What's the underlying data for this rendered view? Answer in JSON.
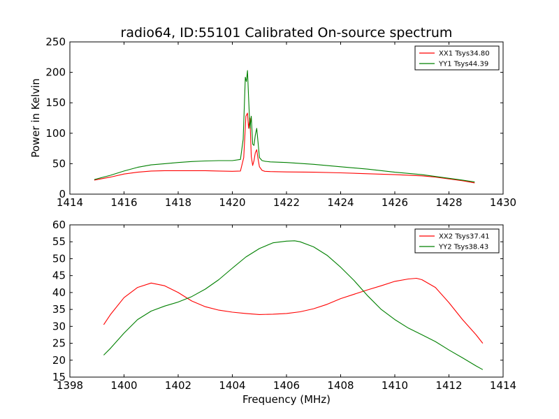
{
  "figure": {
    "title": "radio64, ID:55101 Calibrated On-source spectrum",
    "ylabel_top": "Power in Kelvin",
    "xlabel_bottom": "Frequency (MHz)"
  },
  "colors": {
    "xx": "#ff0000",
    "yy": "#008000",
    "axes": "#000000",
    "background": "#ffffff"
  },
  "chart_data": [
    {
      "type": "line",
      "title": "radio64, ID:55101 Calibrated On-source spectrum",
      "xlabel": "",
      "ylabel": "Power in Kelvin",
      "xlim": [
        1414,
        1430
      ],
      "ylim": [
        0,
        250
      ],
      "xticks": [
        1414,
        1416,
        1418,
        1420,
        1422,
        1424,
        1426,
        1428,
        1430
      ],
      "yticks": [
        0,
        50,
        100,
        150,
        200,
        250
      ],
      "grid": false,
      "legend": "top-right",
      "series": [
        {
          "name": "XX1 Tsys34.80",
          "color": "#ff0000",
          "x": [
            1414.9,
            1415.5,
            1416.0,
            1416.5,
            1417.0,
            1417.5,
            1418.0,
            1418.5,
            1419.0,
            1419.5,
            1420.0,
            1420.3,
            1420.42,
            1420.5,
            1420.56,
            1420.6,
            1420.65,
            1420.7,
            1420.75,
            1420.8,
            1420.85,
            1420.9,
            1420.95,
            1421.0,
            1421.1,
            1421.2,
            1421.4,
            1422.0,
            1423.0,
            1424.0,
            1425.0,
            1426.0,
            1427.0,
            1427.5,
            1428.0,
            1428.5,
            1428.95
          ],
          "y": [
            23,
            28,
            33,
            36,
            38,
            38.5,
            38.5,
            38.5,
            38.5,
            38,
            37.5,
            38,
            60,
            128,
            133,
            108,
            125,
            62,
            47,
            55,
            68,
            73,
            58,
            45,
            39,
            37.5,
            37,
            36.5,
            36,
            35,
            33.5,
            32,
            30,
            28,
            25,
            22,
            18.5
          ]
        },
        {
          "name": "YY1 Tsys44.39",
          "color": "#008000",
          "x": [
            1414.9,
            1415.5,
            1416.0,
            1416.5,
            1417.0,
            1417.5,
            1418.0,
            1418.5,
            1419.0,
            1419.5,
            1420.0,
            1420.3,
            1420.4,
            1420.48,
            1420.52,
            1420.56,
            1420.6,
            1420.65,
            1420.7,
            1420.75,
            1420.8,
            1420.85,
            1420.9,
            1420.95,
            1421.0,
            1421.1,
            1421.2,
            1421.4,
            1422.0,
            1423.0,
            1424.0,
            1425.0,
            1426.0,
            1427.0,
            1427.5,
            1428.0,
            1428.5,
            1428.95
          ],
          "y": [
            24,
            31,
            38,
            44,
            48,
            50,
            52,
            53.5,
            54.5,
            55,
            55,
            57,
            90,
            192,
            185,
            203,
            160,
            108,
            128,
            82,
            80,
            97,
            108,
            85,
            60,
            55,
            54,
            53,
            52,
            49,
            45,
            41,
            36,
            32,
            29,
            26,
            23,
            20
          ]
        }
      ]
    },
    {
      "type": "line",
      "title": "",
      "xlabel": "Frequency (MHz)",
      "ylabel": "",
      "xlim": [
        1398,
        1414
      ],
      "ylim": [
        15,
        60
      ],
      "xticks": [
        1398,
        1400,
        1402,
        1404,
        1406,
        1408,
        1410,
        1412,
        1414
      ],
      "yticks": [
        15,
        20,
        25,
        30,
        35,
        40,
        45,
        50,
        55,
        60
      ],
      "grid": false,
      "legend": "top-right",
      "series": [
        {
          "name": "XX2 Tsys37.41",
          "color": "#ff0000",
          "x": [
            1399.25,
            1399.5,
            1400.0,
            1400.5,
            1401.0,
            1401.5,
            1402.0,
            1402.5,
            1403.0,
            1403.5,
            1404.0,
            1404.5,
            1405.0,
            1405.5,
            1406.0,
            1406.5,
            1407.0,
            1407.5,
            1408.0,
            1408.5,
            1409.0,
            1409.5,
            1410.0,
            1410.5,
            1410.8,
            1411.0,
            1411.5,
            1412.0,
            1412.5,
            1413.0,
            1413.25
          ],
          "y": [
            30.5,
            33.5,
            38.5,
            41.5,
            42.8,
            42,
            40,
            37.5,
            35.8,
            34.8,
            34.2,
            33.8,
            33.5,
            33.6,
            33.8,
            34.3,
            35.2,
            36.5,
            38.2,
            39.5,
            40.8,
            42,
            43.3,
            44,
            44.2,
            43.8,
            41.5,
            37,
            32,
            27.5,
            25
          ]
        },
        {
          "name": "YY2 Tsys38.43",
          "color": "#008000",
          "x": [
            1399.25,
            1399.5,
            1400.0,
            1400.5,
            1401.0,
            1401.5,
            1402.0,
            1402.5,
            1403.0,
            1403.5,
            1404.0,
            1404.5,
            1405.0,
            1405.5,
            1406.0,
            1406.3,
            1406.5,
            1407.0,
            1407.5,
            1408.0,
            1408.5,
            1409.0,
            1409.5,
            1410.0,
            1410.5,
            1411.0,
            1411.5,
            1412.0,
            1412.5,
            1413.0,
            1413.25
          ],
          "y": [
            21.5,
            23.5,
            28,
            32,
            34.5,
            36,
            37.2,
            38.8,
            41,
            43.8,
            47.2,
            50.5,
            53,
            54.7,
            55.2,
            55.3,
            55,
            53.5,
            51,
            47.5,
            43.5,
            39,
            35,
            32,
            29.5,
            27.5,
            25.5,
            23,
            20.7,
            18.3,
            17.2
          ]
        }
      ]
    }
  ]
}
